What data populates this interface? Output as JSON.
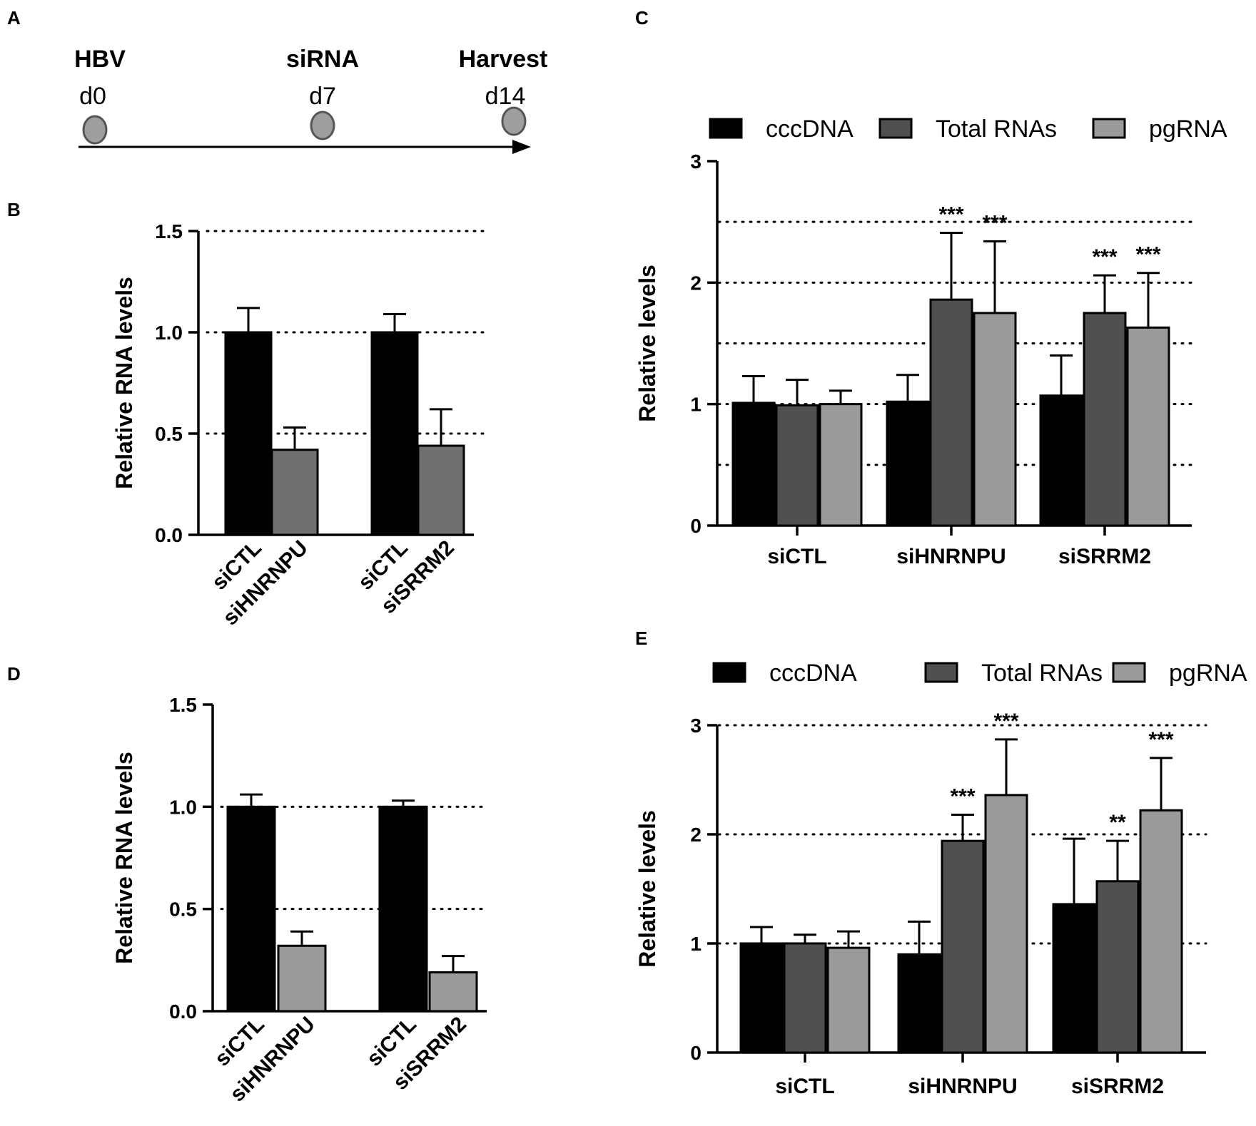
{
  "panel_letters": {
    "a": "A",
    "b": "B",
    "c": "C",
    "d": "D",
    "e": "E"
  },
  "timeline": {
    "events": [
      {
        "label": "HBV",
        "day": "d0"
      },
      {
        "label": "siRNA",
        "day": "d7"
      },
      {
        "label": "Harvest",
        "day": "d14"
      }
    ],
    "colors": {
      "point": "#9e9e9e",
      "point_stroke": "#555555",
      "arrow": "#000000"
    }
  },
  "colors": {
    "cccDNA": "#000000",
    "total_rnas": "#505050",
    "pgrna": "#9a9a9a",
    "knockdown_b": "#707070",
    "knockdown_d": "#9a9a9a"
  },
  "chart_data": [
    {
      "id": "B",
      "type": "bar",
      "ylabel": "Relative RNA levels",
      "ylim": [
        0,
        1.5
      ],
      "yticks": [
        "0.0",
        "0.5",
        "1.0",
        "1.5"
      ],
      "ytick_values": [
        0,
        0.5,
        1.0,
        1.5
      ],
      "gridlines": [
        0.5,
        1.0,
        1.5
      ],
      "categories": [
        "siCTL",
        "siHNRNPU",
        "siCTL",
        "siSRRM2"
      ],
      "values": [
        1.0,
        0.42,
        1.0,
        0.44
      ],
      "errors": [
        0.12,
        0.11,
        0.09,
        0.18
      ],
      "bar_colors": [
        "#000000",
        "#707070",
        "#000000",
        "#707070"
      ]
    },
    {
      "id": "C",
      "type": "bar",
      "ylabel": "Relative levels",
      "ylim": [
        0,
        3
      ],
      "yticks": [
        "0",
        "1",
        "2",
        "3"
      ],
      "ytick_values": [
        0,
        1,
        2,
        3
      ],
      "gridlines": [
        0.5,
        1,
        1.5,
        2,
        2.5
      ],
      "legend": "top",
      "categories": [
        "siCTL",
        "siHNRNPU",
        "siSRRM2"
      ],
      "series": [
        {
          "name": "cccDNA",
          "values": [
            1.01,
            1.02,
            1.07
          ],
          "errors": [
            0.22,
            0.22,
            0.33
          ],
          "sig": [
            "",
            "",
            ""
          ]
        },
        {
          "name": "Total RNAs",
          "values": [
            0.99,
            1.86,
            1.75
          ],
          "errors": [
            0.21,
            0.55,
            0.31
          ],
          "sig": [
            "",
            "***",
            "***"
          ]
        },
        {
          "name": "pgRNA",
          "values": [
            1.0,
            1.75,
            1.63
          ],
          "errors": [
            0.11,
            0.59,
            0.45
          ],
          "sig": [
            "",
            "***",
            "***"
          ]
        }
      ]
    },
    {
      "id": "D",
      "type": "bar",
      "ylabel": "Relative RNA levels",
      "ylim": [
        0,
        1.5
      ],
      "yticks": [
        "0.0",
        "0.5",
        "1.0",
        "1.5"
      ],
      "ytick_values": [
        0,
        0.5,
        1.0,
        1.5
      ],
      "gridlines": [
        0.5,
        1.0
      ],
      "categories": [
        "siCTL",
        "siHNRNPU",
        "siCTL",
        "siSRRM2"
      ],
      "values": [
        1.0,
        0.32,
        1.0,
        0.19
      ],
      "errors": [
        0.06,
        0.07,
        0.03,
        0.08
      ],
      "bar_colors": [
        "#000000",
        "#9a9a9a",
        "#000000",
        "#9a9a9a"
      ]
    },
    {
      "id": "E",
      "type": "bar",
      "ylabel": "Relative levels",
      "ylim": [
        0,
        3
      ],
      "yticks": [
        "0",
        "1",
        "2",
        "3"
      ],
      "ytick_values": [
        0,
        1,
        2,
        3
      ],
      "gridlines": [
        1,
        2,
        3
      ],
      "legend": "top",
      "categories": [
        "siCTL",
        "siHNRNPU",
        "siSRRM2"
      ],
      "series": [
        {
          "name": "cccDNA",
          "values": [
            1.0,
            0.9,
            1.36
          ],
          "errors": [
            0.15,
            0.3,
            0.6
          ],
          "sig": [
            "",
            "",
            ""
          ]
        },
        {
          "name": "Total RNAs",
          "values": [
            1.0,
            1.94,
            1.57
          ],
          "errors": [
            0.08,
            0.24,
            0.37
          ],
          "sig": [
            "",
            "***",
            "**"
          ]
        },
        {
          "name": "pgRNA",
          "values": [
            0.96,
            2.36,
            2.22
          ],
          "errors": [
            0.15,
            0.51,
            0.48
          ],
          "sig": [
            "",
            "***",
            "***"
          ]
        }
      ]
    }
  ]
}
